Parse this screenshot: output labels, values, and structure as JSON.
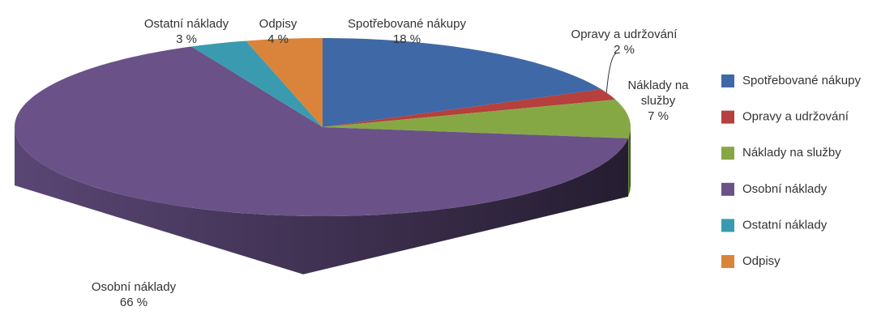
{
  "chart_data": {
    "type": "pie",
    "categories": [
      "Spotřebované nákupy",
      "Opravy a udržování",
      "Náklady na služby",
      "Osobní náklady",
      "Ostatní náklady",
      "Odpisy"
    ],
    "values": [
      18,
      2,
      7,
      66,
      3,
      4
    ],
    "value_labels": [
      "18 %",
      "2 %",
      "7 %",
      "66 %",
      "3 %",
      "4 %"
    ],
    "colors": [
      "#3f68a6",
      "#b5403d",
      "#86a844",
      "#6a5288",
      "#3a9bb0",
      "#d9843a"
    ],
    "legend": "right",
    "three_d": true
  }
}
